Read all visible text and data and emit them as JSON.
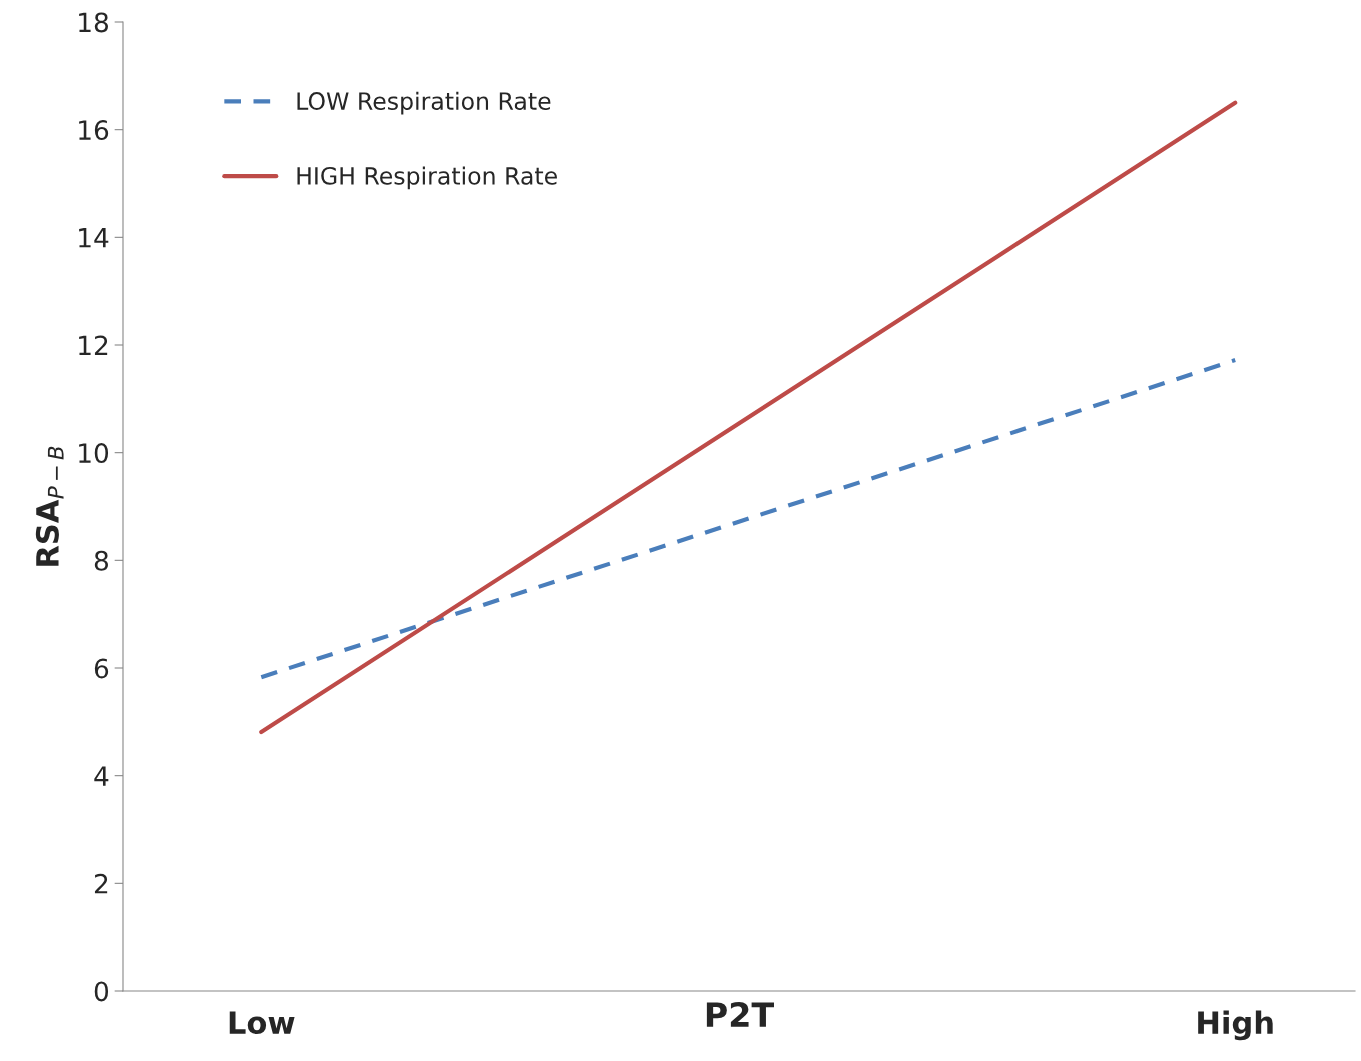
{
  "chart_data": {
    "type": "line",
    "xlabel": "P2T",
    "ylabel": "RSA$_{P−B}$",
    "categories": [
      "Low",
      "High"
    ],
    "series": [
      {
        "name": "LOW Respiration Rate",
        "color": "#4a7ebb",
        "values": [
          5.83,
          11.72
        ],
        "line_style": "dashed"
      },
      {
        "name": "HIGH Respiration Rate",
        "color": "#be4b48",
        "values": [
          4.81,
          16.5
        ],
        "line_style": "solid"
      }
    ],
    "ylim": [
      0,
      18
    ],
    "yticks": [
      0,
      2,
      4,
      6,
      8,
      10,
      12,
      14,
      16,
      18
    ],
    "grid": false,
    "legend": "top left",
    "marker": "none"
  }
}
